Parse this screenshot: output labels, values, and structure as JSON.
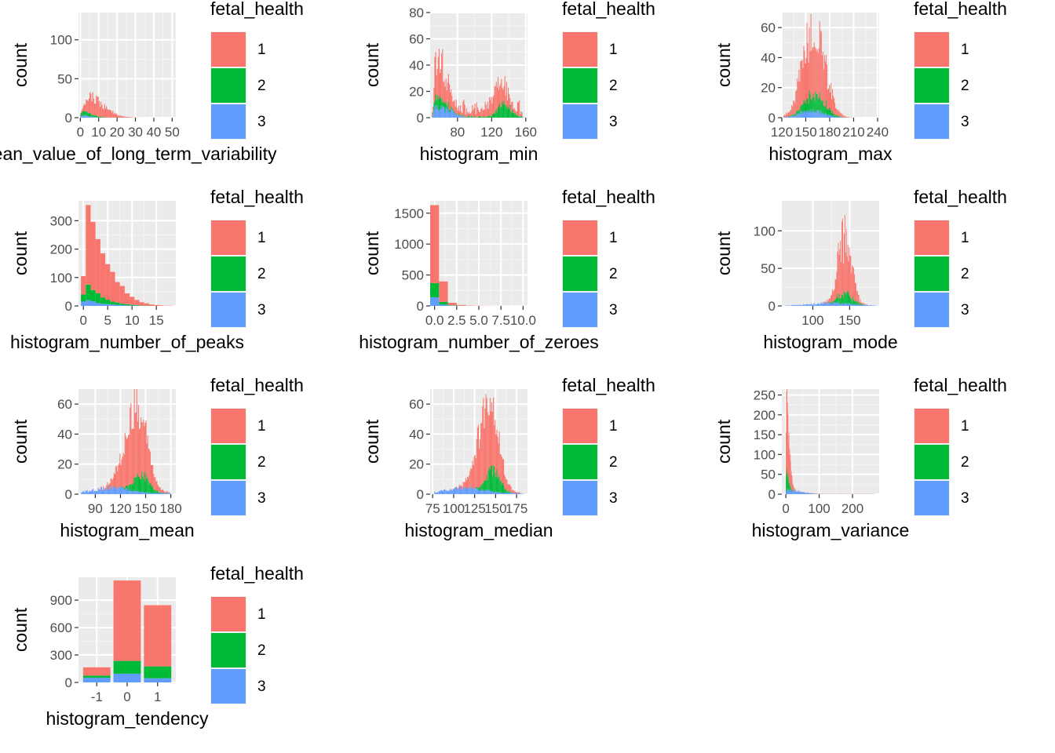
{
  "legend": {
    "title": "fetal_health",
    "entries": [
      {
        "label": "1",
        "color": "#F8766D"
      },
      {
        "label": "2",
        "color": "#00BA38"
      },
      {
        "label": "3",
        "color": "#619CFF"
      }
    ]
  },
  "chart_data": [
    {
      "type": "bar",
      "xlabel": "mean_value_of_long_term_variability",
      "ylabel": "count",
      "xlim": [
        -1,
        52
      ],
      "ylim": [
        0,
        135
      ],
      "xticks": [
        0,
        10,
        20,
        30,
        40,
        50
      ],
      "xtick_labels": [
        "0",
        "10",
        "20",
        "30",
        "40",
        "50"
      ],
      "yticks": [
        0,
        50,
        100
      ],
      "bins": {
        "start": 0,
        "width": 0.5,
        "count": 100
      },
      "series": [
        {
          "name": "1",
          "shape": "skewed",
          "peak_x": 5.5,
          "peak_count": 22,
          "spread_left": 2.5,
          "spread_right": 8,
          "noise": 0.35
        },
        {
          "name": "2",
          "shape": "skewed",
          "peak_x": 2,
          "peak_count": 5,
          "spread_left": 1.5,
          "spread_right": 5,
          "noise": 0.35
        },
        {
          "name": "3",
          "shape": "skewed",
          "peak_x": 1,
          "peak_count": 3,
          "spread_left": 1,
          "spread_right": 4,
          "noise": 0.35
        }
      ]
    },
    {
      "type": "bar",
      "xlabel": "histogram_min",
      "ylabel": "count",
      "xlim": [
        48,
        162
      ],
      "ylim": [
        0,
        80
      ],
      "xticks": [
        80,
        120,
        160
      ],
      "xtick_labels": [
        "80",
        "120",
        "160"
      ],
      "yticks": [
        0,
        20,
        40,
        60,
        80
      ],
      "bins": {
        "start": 50,
        "width": 1,
        "count": 110
      },
      "series": [
        {
          "name": "1",
          "shape": "bimodal",
          "peak_x": 55,
          "peak_count": 33,
          "spread_left": 2,
          "spread_right": 12,
          "peak2_x": 128,
          "peak2_count": 20,
          "spread2": 10,
          "floor": 9,
          "noise": 0.45
        },
        {
          "name": "2",
          "shape": "bimodal",
          "peak_x": 55,
          "peak_count": 8,
          "spread_left": 2,
          "spread_right": 10,
          "peak2_x": 135,
          "peak2_count": 10,
          "spread2": 8,
          "floor": 1,
          "noise": 0.45
        },
        {
          "name": "3",
          "shape": "skewed",
          "peak_x": 55,
          "peak_count": 10,
          "spread_left": 2,
          "spread_right": 14,
          "noise": 0.45
        }
      ]
    },
    {
      "type": "bar",
      "xlabel": "histogram_max",
      "ylabel": "count",
      "xlim": [
        120,
        242
      ],
      "ylim": [
        0,
        70
      ],
      "xticks": [
        120,
        150,
        180,
        210,
        240
      ],
      "xtick_labels": [
        "120",
        "150",
        "180",
        "210",
        "240"
      ],
      "yticks": [
        0,
        20,
        40,
        60
      ],
      "bins": {
        "start": 122,
        "width": 1,
        "count": 118
      },
      "series": [
        {
          "name": "1",
          "shape": "normal",
          "peak_x": 160,
          "peak_count": 45,
          "spread": 14,
          "noise": 0.4
        },
        {
          "name": "2",
          "shape": "normal",
          "peak_x": 162,
          "peak_count": 12,
          "spread": 12,
          "noise": 0.4
        },
        {
          "name": "3",
          "shape": "normal",
          "peak_x": 158,
          "peak_count": 5,
          "spread": 14,
          "noise": 0.4
        }
      ]
    },
    {
      "type": "bar",
      "xlabel": "histogram_number_of_peaks",
      "ylabel": "count",
      "xlim": [
        -1,
        19
      ],
      "ylim": [
        0,
        370
      ],
      "xticks": [
        0,
        5,
        10,
        15
      ],
      "xtick_labels": [
        "0",
        "5",
        "10",
        "15"
      ],
      "yticks": [
        0,
        100,
        200,
        300
      ],
      "bins": {
        "start": -0.5,
        "width": 1,
        "count": 19
      },
      "stacked_counts": {
        "1": [
          65,
          280,
          240,
          190,
          155,
          125,
          105,
          72,
          62,
          38,
          28,
          18,
          12,
          8,
          5,
          3,
          2,
          1,
          1
        ],
        "2": [
          25,
          55,
          40,
          35,
          22,
          16,
          10,
          8,
          5,
          4,
          3,
          2,
          1,
          1,
          0,
          0,
          0,
          0,
          0
        ],
        "3": [
          15,
          20,
          16,
          10,
          8,
          6,
          5,
          4,
          3,
          2,
          1,
          1,
          0,
          0,
          0,
          0,
          0,
          0,
          0
        ]
      }
    },
    {
      "type": "bar",
      "xlabel": "histogram_number_of_zeroes",
      "ylabel": "count",
      "xlim": [
        -0.5,
        10.5
      ],
      "ylim": [
        0,
        1700
      ],
      "xticks": [
        0,
        2.5,
        5,
        7.5,
        10
      ],
      "xtick_labels": [
        "0.0",
        "2.5",
        "5.0",
        "7.5",
        "10.0"
      ],
      "yticks": [
        0,
        500,
        1000,
        1500
      ],
      "bins": {
        "start": -0.5,
        "width": 1,
        "count": 11
      },
      "stacked_counts": {
        "1": [
          1260,
          330,
          40,
          12,
          5,
          3,
          2,
          1,
          1,
          0,
          1
        ],
        "2": [
          230,
          45,
          6,
          2,
          1,
          0,
          0,
          0,
          0,
          0,
          0
        ],
        "3": [
          140,
          20,
          4,
          1,
          0,
          0,
          0,
          0,
          0,
          0,
          0
        ]
      }
    },
    {
      "type": "bar",
      "xlabel": "histogram_mode",
      "ylabel": "count",
      "xlim": [
        58,
        190
      ],
      "ylim": [
        0,
        140
      ],
      "xticks": [
        100,
        150
      ],
      "xtick_labels": [
        "100",
        "150"
      ],
      "yticks": [
        0,
        50,
        100
      ],
      "bins": {
        "start": 60,
        "width": 1,
        "count": 128
      },
      "series": [
        {
          "name": "1",
          "shape": "normal",
          "peak_x": 143,
          "peak_count": 80,
          "spread": 9,
          "noise": 0.45
        },
        {
          "name": "2",
          "shape": "normal",
          "peak_x": 145,
          "peak_count": 15,
          "spread": 9,
          "noise": 0.45
        },
        {
          "name": "3",
          "shape": "normal",
          "peak_x": 125,
          "peak_count": 4,
          "spread": 28,
          "floor": 1,
          "noise": 0.5
        }
      ]
    },
    {
      "type": "bar",
      "xlabel": "histogram_mean",
      "ylabel": "count",
      "xlim": [
        70,
        186
      ],
      "ylim": [
        0,
        70
      ],
      "xticks": [
        90,
        120,
        150,
        180
      ],
      "xtick_labels": [
        "90",
        "120",
        "150",
        "180"
      ],
      "yticks": [
        0,
        20,
        40,
        60
      ],
      "bins": {
        "start": 73,
        "width": 1,
        "count": 110
      },
      "series": [
        {
          "name": "1",
          "shape": "normal",
          "peak_x": 137,
          "peak_count": 48,
          "spread": 13,
          "noise": 0.3
        },
        {
          "name": "2",
          "shape": "normal",
          "peak_x": 145,
          "peak_count": 12,
          "spread": 9,
          "noise": 0.3
        },
        {
          "name": "3",
          "shape": "normal",
          "peak_x": 110,
          "peak_count": 4,
          "spread": 25,
          "floor": 1,
          "noise": 0.4
        }
      ]
    },
    {
      "type": "bar",
      "xlabel": "histogram_median",
      "ylabel": "count",
      "xlim": [
        72,
        188
      ],
      "ylim": [
        0,
        70
      ],
      "xticks": [
        75,
        100,
        125,
        150,
        175
      ],
      "xtick_labels": [
        "75",
        "100",
        "125",
        "150",
        "175"
      ],
      "yticks": [
        0,
        20,
        40,
        60
      ],
      "bins": {
        "start": 77,
        "width": 1,
        "count": 109
      },
      "series": [
        {
          "name": "1",
          "shape": "normal",
          "peak_x": 140,
          "peak_count": 50,
          "spread": 12,
          "noise": 0.3
        },
        {
          "name": "2",
          "shape": "normal",
          "peak_x": 147,
          "peak_count": 14,
          "spread": 8,
          "noise": 0.3
        },
        {
          "name": "3",
          "shape": "normal",
          "peak_x": 115,
          "peak_count": 4,
          "spread": 25,
          "floor": 1,
          "noise": 0.4
        }
      ]
    },
    {
      "type": "bar",
      "xlabel": "histogram_variance",
      "ylabel": "count",
      "xlim": [
        -12,
        280
      ],
      "ylim": [
        0,
        265
      ],
      "xticks": [
        0,
        100,
        200
      ],
      "xtick_labels": [
        "0",
        "100",
        "200"
      ],
      "yticks": [
        0,
        50,
        100,
        150,
        200,
        250
      ],
      "bins": {
        "start": 0,
        "width": 1,
        "count": 275
      },
      "series": [
        {
          "name": "1",
          "shape": "skewed",
          "peak_x": 1,
          "peak_count": 175,
          "spread_left": 0.6,
          "spread_right": 9,
          "floor": 0.6,
          "noise": 0.35
        },
        {
          "name": "2",
          "shape": "skewed",
          "peak_x": 1,
          "peak_count": 45,
          "spread_left": 0.6,
          "spread_right": 7,
          "noise": 0.35
        },
        {
          "name": "3",
          "shape": "skewed",
          "peak_x": 2,
          "peak_count": 10,
          "spread_left": 1,
          "spread_right": 40,
          "floor": 0.5,
          "noise": 0.45
        }
      ]
    },
    {
      "type": "bar",
      "xlabel": "histogram_tendency",
      "ylabel": "count",
      "categories": [
        "-1",
        "0",
        "1"
      ],
      "ylim": [
        0,
        1150
      ],
      "yticks": [
        0,
        300,
        600,
        900
      ],
      "ytick_labels": [
        "0",
        "300",
        "600",
        "900"
      ],
      "series": [
        {
          "name": "1",
          "values": [
            90,
            880,
            670
          ]
        },
        {
          "name": "2",
          "values": [
            25,
            140,
            130
          ]
        },
        {
          "name": "3",
          "values": [
            50,
            95,
            45
          ]
        }
      ]
    }
  ]
}
